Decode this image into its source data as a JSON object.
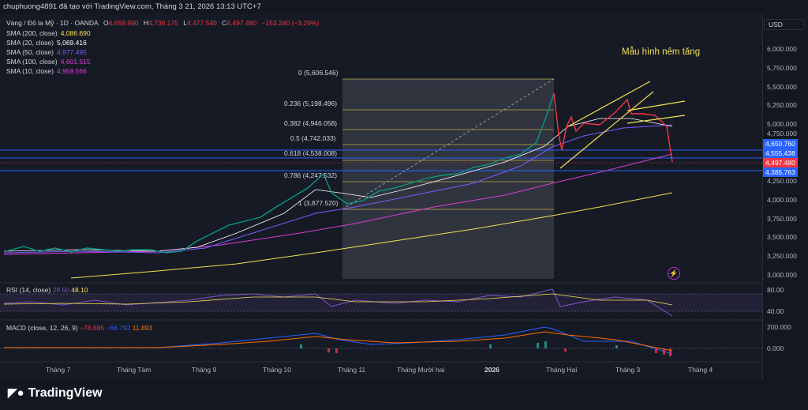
{
  "header": {
    "title": "chuphuong4891 đã tạo với TradingView.com, Tháng 3 21, 2026 13:13 UTC+7"
  },
  "symbol": {
    "name": "Vàng / Đô la Mỹ · 1D · OANDA",
    "open_label": "O",
    "open": "4,659.990",
    "high_label": "H",
    "high": "4,736.175",
    "low_label": "L",
    "low": "4,477.540",
    "close_label": "C",
    "close": "4,497.480",
    "change": "−153.240 (−3.29%)"
  },
  "indicators": [
    {
      "label": "SMA (200, close)",
      "value": "4,086.690",
      "color": "#f4e04d"
    },
    {
      "label": "SMA (20, close)",
      "value": "5,069.416",
      "color": "#ffffff"
    },
    {
      "label": "SMA (50, close)",
      "value": "4,977.495",
      "color": "#7b5cff"
    },
    {
      "label": "SMA (100, close)",
      "value": "4,601.515",
      "color": "#d63fd3"
    },
    {
      "label": "SMA (10, close)",
      "value": "4,958.566",
      "color": "#d63fd3"
    }
  ],
  "currency_button": "USD",
  "price_axis": [
    "6,000.000",
    "5,750.000",
    "5,500.000",
    "5,250.000",
    "5,000.000",
    "4,750.000",
    "4,250.000",
    "4,000.000",
    "3,750.000",
    "3,500.000",
    "3,250.000",
    "3,000.000"
  ],
  "price_tags": [
    {
      "value": "4,650.760",
      "color": "#2962ff"
    },
    {
      "value": "4,555.438",
      "color": "#2962ff"
    },
    {
      "value": "4,497.480",
      "color": "#f23645"
    },
    {
      "value": "4,385.763",
      "color": "#2962ff"
    }
  ],
  "fib_levels": [
    {
      "label": "0 (5,606.546)"
    },
    {
      "label": "0.236 (5,198.496)"
    },
    {
      "label": "0.382 (4,946.058)"
    },
    {
      "label": "0.5 (4,742.033)"
    },
    {
      "label": "0.618 (4,538.008)"
    },
    {
      "label": "0.786 (4,247.532)"
    },
    {
      "label": "1 (3,877.520)"
    }
  ],
  "annotation": "Mẫu hình nêm tăng",
  "rsi": {
    "title": "RSI (14, close)",
    "value1": "29.50",
    "value2": "48.10",
    "axis": [
      "80.00",
      "40.00"
    ]
  },
  "macd": {
    "title": "MACD (close, 12, 26, 9)",
    "value1": "−78.685",
    "value2": "−66.792",
    "value3": "11.893",
    "axis": [
      "200.000",
      "0.000"
    ]
  },
  "time_axis": [
    "Tháng 7",
    "Tháng Tám",
    "Tháng 9",
    "Tháng 10",
    "Tháng 11",
    "Tháng Mười hai",
    "2026",
    "Tháng Hai",
    "Tháng 3",
    "Tháng 4"
  ],
  "brand": "TradingView",
  "brand_icon": "tradingview-logo-icon",
  "alert_icon": "lightning-icon",
  "colors": {
    "up": "#089981",
    "down": "#f23645",
    "sma200": "#f4e04d",
    "sma100": "#d63fd3",
    "sma50": "#7b5cff",
    "sma20": "#ffffff"
  }
}
